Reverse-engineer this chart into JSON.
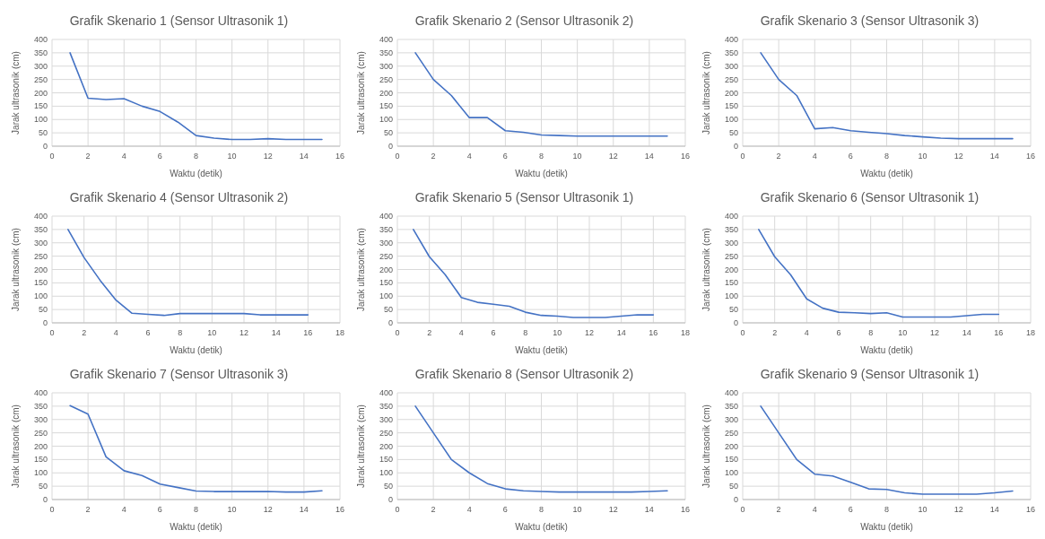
{
  "chart_data": [
    {
      "type": "line",
      "title": "Grafik Skenario 1 (Sensor Ultrasonik 1)",
      "xlabel": "Waktu (detik)",
      "ylabel": "Jarak ultrasonik (cm)",
      "x": [
        1,
        2,
        3,
        4,
        5,
        6,
        7,
        8,
        9,
        10,
        11,
        12,
        13,
        14,
        15
      ],
      "series": [
        {
          "color": "#4472c4",
          "values": [
            350,
            180,
            175,
            178,
            150,
            130,
            90,
            40,
            30,
            25,
            25,
            28,
            25,
            25,
            25
          ]
        }
      ],
      "xlim": [
        0,
        16
      ],
      "xticks": [
        0,
        2,
        4,
        6,
        8,
        10,
        12,
        14,
        16
      ],
      "ylim": [
        0,
        400
      ],
      "yticks": [
        0,
        50,
        100,
        150,
        200,
        250,
        300,
        350,
        400
      ],
      "grid": true
    },
    {
      "type": "line",
      "title": "Grafik Skenario 2 (Sensor Ultrasonik 2)",
      "xlabel": "Waktu (detik)",
      "ylabel": "Jarak ultrasonik (cm)",
      "x": [
        1,
        2,
        3,
        4,
        5,
        6,
        7,
        8,
        9,
        10,
        11,
        12,
        13,
        14,
        15
      ],
      "series": [
        {
          "color": "#4472c4",
          "values": [
            350,
            250,
            190,
            107,
            107,
            58,
            52,
            42,
            40,
            38,
            38,
            38,
            38,
            38,
            38
          ]
        }
      ],
      "xlim": [
        0,
        16
      ],
      "xticks": [
        0,
        2,
        4,
        6,
        8,
        10,
        12,
        14,
        16
      ],
      "ylim": [
        0,
        400
      ],
      "yticks": [
        0,
        50,
        100,
        150,
        200,
        250,
        300,
        350,
        400
      ],
      "grid": true
    },
    {
      "type": "line",
      "title": "Grafik Skenario 3 (Sensor Ultrasonik 3)",
      "xlabel": "Waktu (detik)",
      "ylabel": "Jarak ultrasonik (cm)",
      "x": [
        1,
        2,
        3,
        4,
        5,
        6,
        7,
        8,
        9,
        10,
        11,
        12,
        13,
        14,
        15
      ],
      "series": [
        {
          "color": "#4472c4",
          "values": [
            350,
            250,
            190,
            65,
            70,
            58,
            52,
            47,
            40,
            35,
            30,
            28,
            28,
            28,
            28
          ]
        }
      ],
      "xlim": [
        0,
        16
      ],
      "xticks": [
        0,
        2,
        4,
        6,
        8,
        10,
        12,
        14,
        16
      ],
      "ylim": [
        0,
        400
      ],
      "yticks": [
        0,
        50,
        100,
        150,
        200,
        250,
        300,
        350,
        400
      ],
      "grid": true
    },
    {
      "type": "line",
      "title": "Grafik Skenario 4 (Sensor Ultrasonik 2)",
      "xlabel": "Waktu (detik)",
      "ylabel": "Jarak ultrasonik (cm)",
      "x": [
        1,
        2,
        3,
        4,
        5,
        6,
        7,
        8,
        9,
        10,
        11,
        12,
        13,
        14,
        15,
        16
      ],
      "series": [
        {
          "color": "#4472c4",
          "values": [
            350,
            245,
            160,
            85,
            36,
            32,
            28,
            35,
            35,
            35,
            35,
            35,
            30,
            30,
            30,
            30
          ]
        }
      ],
      "xlim": [
        0,
        18
      ],
      "xticks": [
        0,
        2,
        4,
        6,
        8,
        10,
        12,
        14,
        16,
        18
      ],
      "ylim": [
        0,
        400
      ],
      "yticks": [
        0,
        50,
        100,
        150,
        200,
        250,
        300,
        350,
        400
      ],
      "grid": true
    },
    {
      "type": "line",
      "title": "Grafik Skenario 5 (Sensor Ultrasonik 1)",
      "xlabel": "Waktu (detik)",
      "ylabel": "Jarak ultrasonik (cm)",
      "x": [
        1,
        2,
        3,
        4,
        5,
        6,
        7,
        8,
        9,
        10,
        11,
        12,
        13,
        14,
        15,
        16
      ],
      "series": [
        {
          "color": "#4472c4",
          "values": [
            350,
            248,
            180,
            95,
            77,
            70,
            62,
            40,
            28,
            25,
            20,
            20,
            20,
            25,
            30,
            30
          ]
        }
      ],
      "xlim": [
        0,
        18
      ],
      "xticks": [
        0,
        2,
        4,
        6,
        8,
        10,
        12,
        14,
        16,
        18
      ],
      "ylim": [
        0,
        400
      ],
      "yticks": [
        0,
        50,
        100,
        150,
        200,
        250,
        300,
        350,
        400
      ],
      "grid": true
    },
    {
      "type": "line",
      "title": "Grafik Skenario 6 (Sensor Ultrasonik 1)",
      "xlabel": "Waktu (detik)",
      "ylabel": "Jarak ultrasonik (cm)",
      "x": [
        1,
        2,
        3,
        4,
        5,
        6,
        7,
        8,
        9,
        10,
        11,
        12,
        13,
        14,
        15,
        16
      ],
      "series": [
        {
          "color": "#4472c4",
          "values": [
            350,
            248,
            180,
            90,
            55,
            40,
            38,
            35,
            38,
            22,
            22,
            22,
            22,
            27,
            32,
            32
          ]
        }
      ],
      "xlim": [
        0,
        18
      ],
      "xticks": [
        0,
        2,
        4,
        6,
        8,
        10,
        12,
        14,
        16,
        18
      ],
      "ylim": [
        0,
        400
      ],
      "yticks": [
        0,
        50,
        100,
        150,
        200,
        250,
        300,
        350,
        400
      ],
      "grid": true
    },
    {
      "type": "line",
      "title": "Grafik Skenario 7 (Sensor Ultrasonik 3)",
      "xlabel": "Waktu (detik)",
      "ylabel": "Jarak ultrasonik (cm)",
      "x": [
        1,
        2,
        3,
        4,
        5,
        6,
        7,
        8,
        9,
        10,
        11,
        12,
        13,
        14,
        15
      ],
      "series": [
        {
          "color": "#4472c4",
          "values": [
            352,
            320,
            160,
            108,
            90,
            58,
            45,
            32,
            30,
            30,
            30,
            30,
            28,
            28,
            33
          ]
        }
      ],
      "xlim": [
        0,
        16
      ],
      "xticks": [
        0,
        2,
        4,
        6,
        8,
        10,
        12,
        14,
        16
      ],
      "ylim": [
        0,
        400
      ],
      "yticks": [
        0,
        50,
        100,
        150,
        200,
        250,
        300,
        350,
        400
      ],
      "grid": true
    },
    {
      "type": "line",
      "title": "Grafik Skenario 8 (Sensor Ultrasonik 2)",
      "xlabel": "Waktu (detik)",
      "ylabel": "Jarak ultrasonik (cm)",
      "x": [
        1,
        2,
        3,
        4,
        5,
        6,
        7,
        8,
        9,
        10,
        11,
        12,
        13,
        14,
        15
      ],
      "series": [
        {
          "color": "#4472c4",
          "values": [
            350,
            250,
            150,
            100,
            60,
            40,
            33,
            30,
            28,
            28,
            28,
            28,
            28,
            30,
            33
          ]
        }
      ],
      "xlim": [
        0,
        16
      ],
      "xticks": [
        0,
        2,
        4,
        6,
        8,
        10,
        12,
        14,
        16
      ],
      "ylim": [
        0,
        400
      ],
      "yticks": [
        0,
        50,
        100,
        150,
        200,
        250,
        300,
        350,
        400
      ],
      "grid": true
    },
    {
      "type": "line",
      "title": "Grafik Skenario 9 (Sensor Ultrasonik 1)",
      "xlabel": "Waktu (detik)",
      "ylabel": "Jarak ultrasonik (cm)",
      "x": [
        1,
        2,
        3,
        4,
        5,
        6,
        7,
        8,
        9,
        10,
        11,
        12,
        13,
        14,
        15
      ],
      "series": [
        {
          "color": "#4472c4",
          "values": [
            350,
            250,
            150,
            95,
            88,
            65,
            40,
            38,
            25,
            20,
            20,
            20,
            20,
            25,
            32
          ]
        }
      ],
      "xlim": [
        0,
        16
      ],
      "xticks": [
        0,
        2,
        4,
        6,
        8,
        10,
        12,
        14,
        16
      ],
      "ylim": [
        0,
        400
      ],
      "yticks": [
        0,
        50,
        100,
        150,
        200,
        250,
        300,
        350,
        400
      ],
      "grid": true
    }
  ]
}
